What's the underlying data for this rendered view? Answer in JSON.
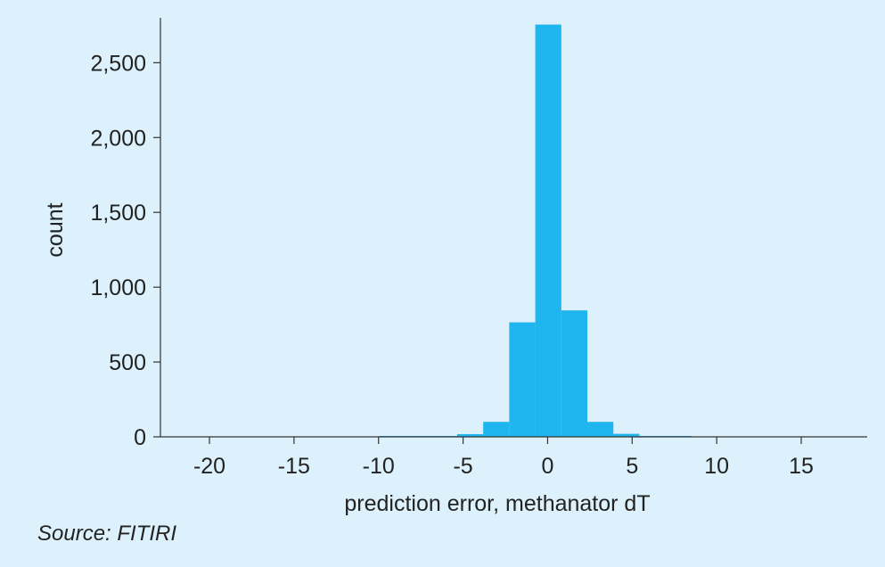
{
  "chart_data": {
    "type": "bar",
    "xlabel": "prediction error, methanator dT",
    "ylabel": "count",
    "xlim": [
      -22.9,
      18.9
    ],
    "ylim": [
      0,
      2800
    ],
    "x_ticks": [
      -20,
      -15,
      -10,
      -5,
      0,
      5,
      10,
      15
    ],
    "x_tick_labels": [
      "-20",
      "-15",
      "-10",
      "-5",
      "0",
      "5",
      "10",
      "15"
    ],
    "y_ticks": [
      0,
      500,
      1000,
      1500,
      2000,
      2500
    ],
    "y_tick_labels": [
      "0",
      "500",
      "1,000",
      "1,500",
      "2,000",
      "2,500"
    ],
    "bin_width": 1.54,
    "bins": [
      {
        "start": -21.6,
        "count": 0
      },
      {
        "start": -20.06,
        "count": 0
      },
      {
        "start": -18.52,
        "count": 0
      },
      {
        "start": -16.98,
        "count": 0
      },
      {
        "start": -15.44,
        "count": 0
      },
      {
        "start": -13.9,
        "count": 0
      },
      {
        "start": -12.36,
        "count": 0
      },
      {
        "start": -10.82,
        "count": 0
      },
      {
        "start": -9.97,
        "count": 6
      },
      {
        "start": -8.43,
        "count": 6
      },
      {
        "start": -6.89,
        "count": 6
      },
      {
        "start": -5.35,
        "count": 18
      },
      {
        "start": -3.81,
        "count": 100
      },
      {
        "start": -2.27,
        "count": 765
      },
      {
        "start": -0.73,
        "count": 2755
      },
      {
        "start": 0.81,
        "count": 845
      },
      {
        "start": 2.35,
        "count": 100
      },
      {
        "start": 3.89,
        "count": 20
      },
      {
        "start": 5.43,
        "count": 6
      },
      {
        "start": 6.97,
        "count": 6
      }
    ],
    "bar_color": "#1fb5ef",
    "grid": false
  },
  "source_text": "Source: FITIRI",
  "colors": {
    "background": "#dcf1fb",
    "bar": "#1fb5ef",
    "axis": "#333333"
  }
}
